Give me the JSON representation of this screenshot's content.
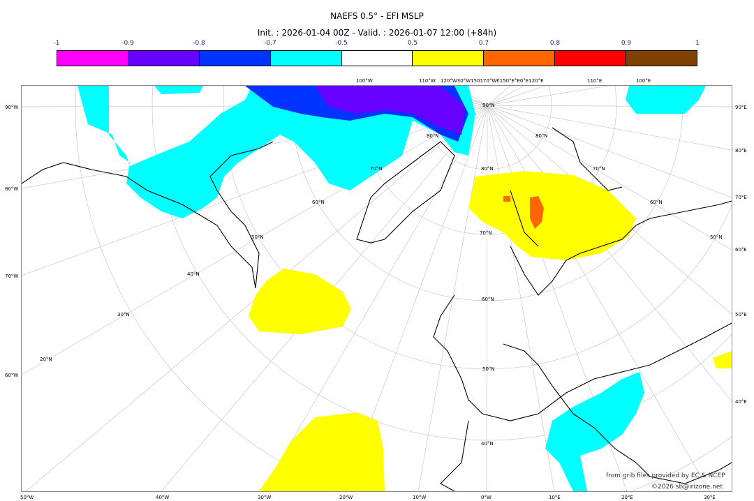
{
  "header": {
    "title": "NAEFS 0.5° - EFI MSLP",
    "subtitle": "Init. : 2026-01-04 00Z - Valid. : 2026-01-07 12:00 (+84h)"
  },
  "colorbar": {
    "ticks": [
      "-1",
      "-0.9",
      "-0.8",
      "-0.7",
      "-0.5",
      "0.5",
      "0.7",
      "0.8",
      "0.9",
      "1"
    ],
    "colors": [
      "#ff00ff",
      "#6600ff",
      "#0033ff",
      "#00ffff",
      "#ffffff",
      "#ffff00",
      "#ff6600",
      "#ff0000",
      "#804000"
    ]
  },
  "map": {
    "left_labels": [
      "90°W",
      "80°W",
      "70°W",
      "60°W"
    ],
    "right_labels": [
      "90°E",
      "80°E",
      "70°E",
      "60°E",
      "50°E",
      "40°E"
    ],
    "bottom_labels": [
      "50°W",
      "40°W",
      "30°W",
      "20°W",
      "10°W",
      "0°W",
      "10°E",
      "20°E",
      "30°E"
    ],
    "top_labels": [
      "100°W",
      "110°W",
      "120°W30°W150170°W€150°E°E0°E120°E",
      "110°E",
      "100°E"
    ],
    "lat_labels": [
      "90°N",
      "80°N",
      "70°N",
      "60°N",
      "50°N",
      "40°N",
      "70°N",
      "60°N",
      "50°N",
      "40°N",
      "30°N",
      "20°N",
      "80°N",
      "80°N",
      "70°N",
      "60°N",
      "50°N"
    ]
  },
  "credits": {
    "source": "from grib files provided by EC & NCEP",
    "copyright": "©2026 sb@irizone.net"
  }
}
